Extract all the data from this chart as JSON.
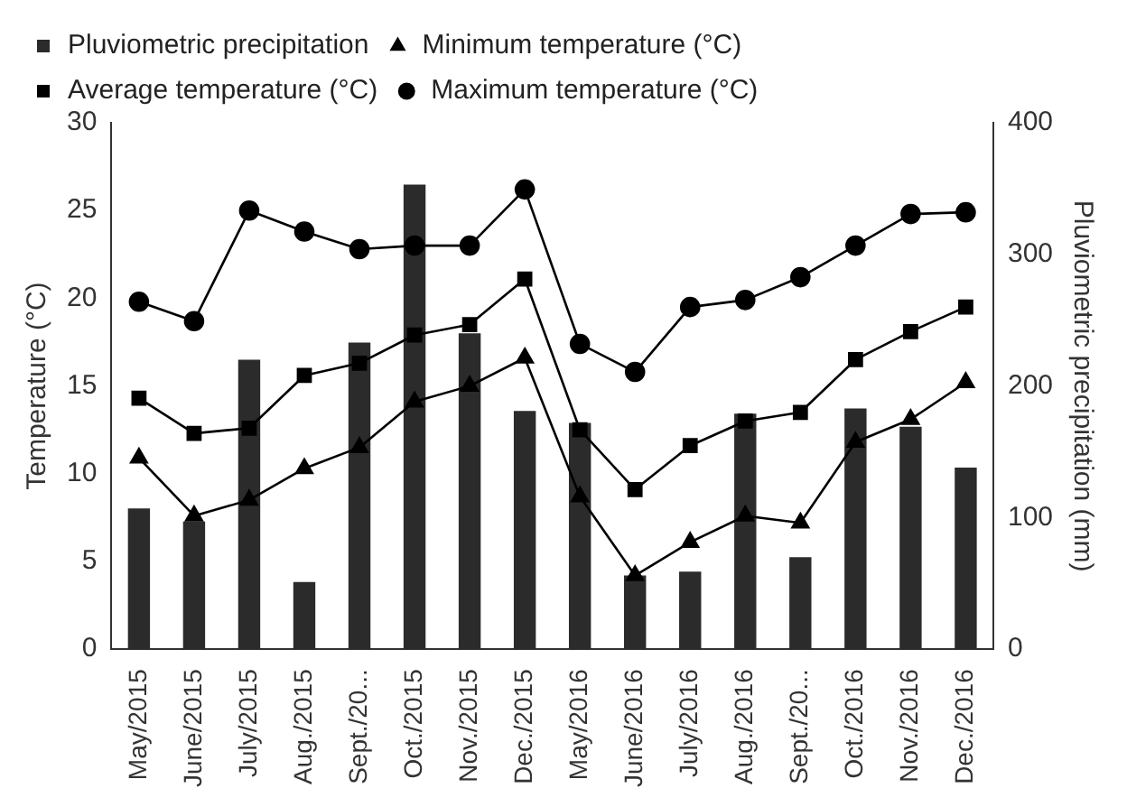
{
  "chart_data": {
    "type": "bar",
    "ylabel": "Temperature (°C)",
    "y2label": "Pluviometric precipitation (mm)",
    "categories": [
      "May/2015",
      "June/2015",
      "July/2015",
      "Aug./2015",
      "Sept./20...",
      "Oct./2015",
      "Nov./2015",
      "Dec./2015",
      "May/2016",
      "June/2016",
      "July/2016",
      "Aug./2016",
      "Sept./20...",
      "Oct./2016",
      "Nov./2016",
      "Dec./2016"
    ],
    "series": [
      {
        "name": "Pluviometric precipitation",
        "axis": "y2",
        "color": "#2b2b2b",
        "values": [
          107,
          97,
          220,
          51,
          233,
          353,
          240,
          181,
          172,
          56,
          59,
          179,
          70,
          183,
          169,
          138
        ]
      },
      {
        "name": "Minimum temperature (°C)",
        "type": "line",
        "marker": "triangle",
        "color": "#000000",
        "values": [
          10.9,
          7.6,
          8.5,
          10.3,
          11.5,
          14.1,
          15.0,
          16.6,
          8.7,
          4.2,
          6.1,
          7.6,
          7.2,
          11.8,
          13.1,
          15.2
        ]
      },
      {
        "name": "Average temperature (°C)",
        "type": "line",
        "marker": "square",
        "color": "#000000",
        "values": [
          14.3,
          12.3,
          12.6,
          15.6,
          16.3,
          17.9,
          18.5,
          21.1,
          12.5,
          9.1,
          11.6,
          13.0,
          13.5,
          16.5,
          18.1,
          19.5
        ]
      },
      {
        "name": "Maximum temperature (°C)",
        "type": "line",
        "marker": "circle",
        "color": "#000000",
        "values": [
          19.8,
          18.7,
          25.0,
          23.8,
          22.8,
          23.0,
          23.0,
          26.2,
          17.4,
          15.8,
          19.5,
          19.9,
          21.2,
          23.0,
          24.8,
          24.9
        ]
      }
    ],
    "ylim": [
      0,
      30
    ],
    "yticks": [
      0,
      5,
      10,
      15,
      20,
      25,
      30
    ],
    "y2lim": [
      0,
      400
    ],
    "y2ticks": [
      0,
      100,
      200,
      300,
      400
    ],
    "grid": false,
    "legend": "top"
  }
}
